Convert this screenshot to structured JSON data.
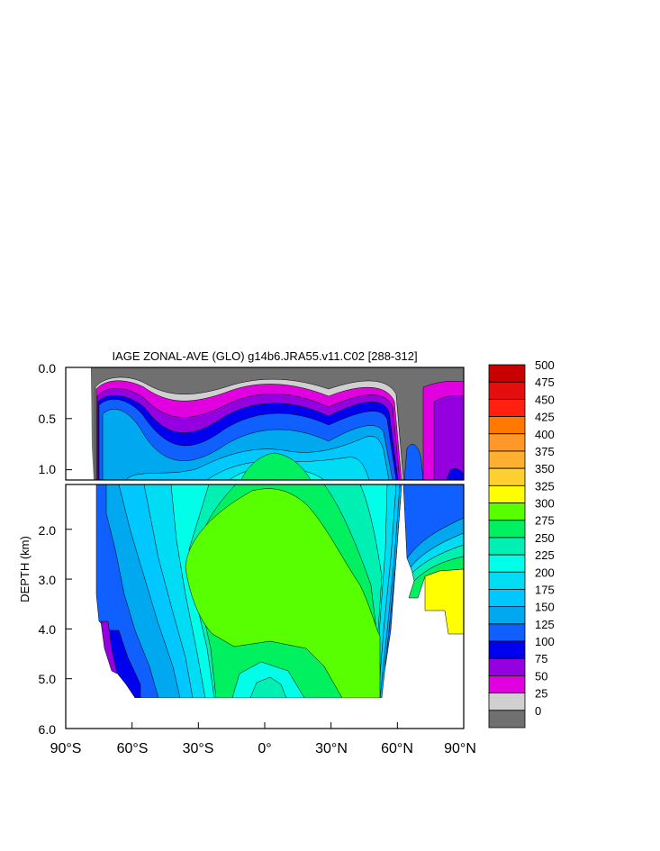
{
  "chart_data": {
    "type": "heatmap",
    "title": "IAGE ZONAL-AVE (GLO) g14b6.JRA55.v11.C02 [288-312]",
    "xlabel": "",
    "ylabel": "DEPTH (km)",
    "x_ticks": [
      "90°S",
      "60°S",
      "30°S",
      "0°",
      "30°N",
      "60°N",
      "90°N"
    ],
    "x_tick_values": [
      -90,
      -60,
      -30,
      0,
      30,
      60,
      90
    ],
    "xlim": [
      -90,
      90
    ],
    "y_ticks_upper": [
      "0.0",
      "0.5",
      "1.0"
    ],
    "y_tick_values_upper": [
      0.0,
      0.5,
      1.0
    ],
    "ylim_upper": [
      0,
      1.1
    ],
    "y_ticks_lower": [
      "2.0",
      "3.0",
      "4.0",
      "5.0",
      "6.0"
    ],
    "y_tick_values_lower": [
      2.0,
      3.0,
      4.0,
      5.0,
      6.0
    ],
    "ylim_lower": [
      1.1,
      6.0
    ],
    "colorbar": {
      "labels": [
        "500",
        "475",
        "450",
        "425",
        "400",
        "375",
        "350",
        "325",
        "300",
        "275",
        "250",
        "225",
        "200",
        "175",
        "150",
        "125",
        "100",
        "75",
        "50",
        "25",
        "0"
      ],
      "colors": [
        "#c80000",
        "#e30f0f",
        "#ff2010",
        "#ff7800",
        "#ff9828",
        "#ffb030",
        "#ffd030",
        "#ffff00",
        "#58ff00",
        "#00f060",
        "#00f0b4",
        "#00ffe8",
        "#00dcf4",
        "#00c8ff",
        "#00a8f0",
        "#1060ff",
        "#0000f0",
        "#9400e0",
        "#e000e0",
        "#d0d0d0",
        "#707070"
      ]
    },
    "regions": [
      {
        "name": "land",
        "color": "#ffffff"
      },
      {
        "name": "0-25",
        "color": "#707070"
      },
      {
        "name": "25-50",
        "color": "#d0d0d0"
      },
      {
        "name": "50-75",
        "color": "#e000e0"
      },
      {
        "name": "75-100",
        "color": "#9400e0"
      },
      {
        "name": "100-125",
        "color": "#0000f0"
      },
      {
        "name": "125-150",
        "color": "#1060ff"
      },
      {
        "name": "150-175",
        "color": "#00a8f0"
      },
      {
        "name": "175-200",
        "color": "#00c8ff"
      },
      {
        "name": "200-225",
        "color": "#00dcf4"
      },
      {
        "name": "225-250",
        "color": "#00ffe8"
      },
      {
        "name": "250-275",
        "color": "#00f0b4"
      },
      {
        "name": "275-300",
        "color": "#00f060"
      },
      {
        "name": "300-325",
        "color": "#58ff00"
      },
      {
        "name": "325-350",
        "color": "#ffff00"
      }
    ]
  }
}
